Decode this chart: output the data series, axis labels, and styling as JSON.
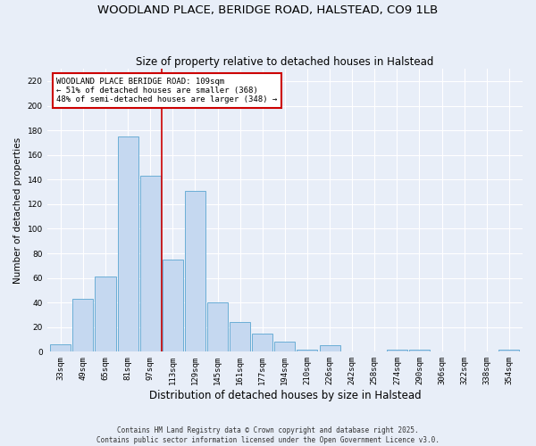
{
  "title": "WOODLAND PLACE, BERIDGE ROAD, HALSTEAD, CO9 1LB",
  "subtitle": "Size of property relative to detached houses in Halstead",
  "xlabel": "Distribution of detached houses by size in Halstead",
  "ylabel": "Number of detached properties",
  "categories": [
    "33sqm",
    "49sqm",
    "65sqm",
    "81sqm",
    "97sqm",
    "113sqm",
    "129sqm",
    "145sqm",
    "161sqm",
    "177sqm",
    "194sqm",
    "210sqm",
    "226sqm",
    "242sqm",
    "258sqm",
    "274sqm",
    "290sqm",
    "306sqm",
    "322sqm",
    "338sqm",
    "354sqm"
  ],
  "values": [
    6,
    43,
    61,
    175,
    143,
    75,
    131,
    40,
    24,
    15,
    8,
    2,
    5,
    0,
    0,
    2,
    2,
    0,
    0,
    0,
    2
  ],
  "bar_color": "#c5d8f0",
  "bar_edge_color": "#6baed6",
  "vline_x_index": 4.5,
  "vline_color": "#cc0000",
  "annotation_text": "WOODLAND PLACE BERIDGE ROAD: 109sqm\n← 51% of detached houses are smaller (368)\n48% of semi-detached houses are larger (348) →",
  "annotation_box_color": "#ffffff",
  "annotation_box_edge": "#cc0000",
  "ylim": [
    0,
    230
  ],
  "yticks": [
    0,
    20,
    40,
    60,
    80,
    100,
    120,
    140,
    160,
    180,
    200,
    220
  ],
  "bg_color": "#e8eef8",
  "grid_color": "#ffffff",
  "footer": "Contains HM Land Registry data © Crown copyright and database right 2025.\nContains public sector information licensed under the Open Government Licence v3.0.",
  "title_fontsize": 9.5,
  "subtitle_fontsize": 8.5,
  "xlabel_fontsize": 8.5,
  "ylabel_fontsize": 7.5,
  "tick_fontsize": 6.5,
  "annotation_fontsize": 6.5,
  "footer_fontsize": 5.5
}
